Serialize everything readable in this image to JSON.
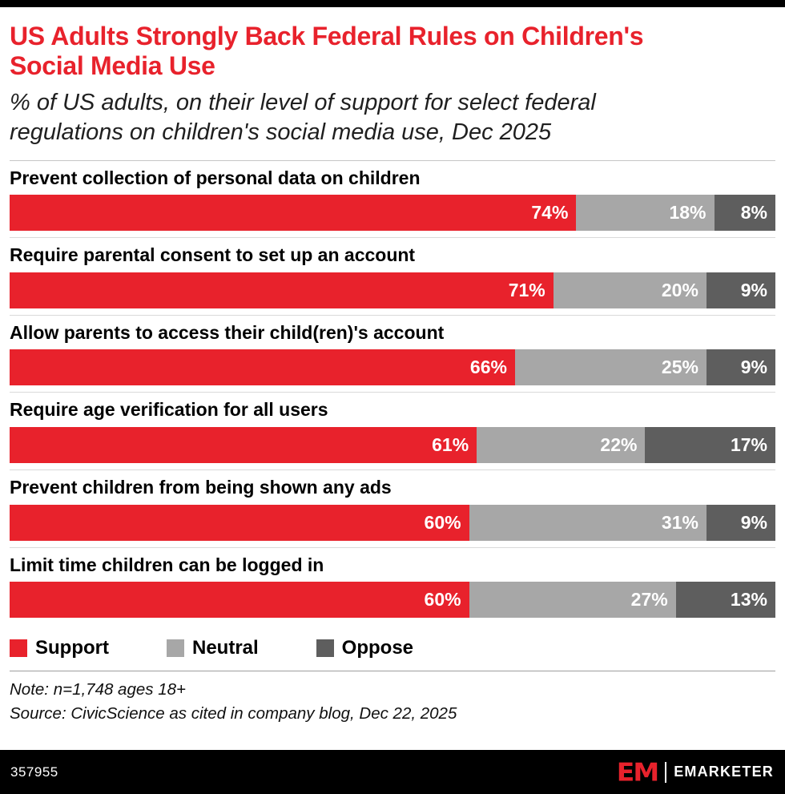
{
  "header": {
    "title": "US Adults Strongly Back Federal Rules on Children's Social Media Use",
    "subtitle": "% of US adults, on their level of support for select federal regulations on children's social media use, Dec 2025"
  },
  "chart_data": {
    "type": "bar",
    "orientation": "horizontal",
    "stacked": true,
    "value_suffix": "%",
    "xlim": [
      0,
      100
    ],
    "categories": [
      "Prevent collection of personal data on children",
      "Require parental consent to set up an account",
      "Allow parents to access their child(ren)'s account",
      "Require age verification for all users",
      "Prevent children from being shown any ads",
      "Limit time children can be logged in"
    ],
    "series": [
      {
        "name": "Support",
        "color": "#E8222C",
        "values": [
          74,
          71,
          66,
          61,
          60,
          60
        ]
      },
      {
        "name": "Neutral",
        "color": "#A7A7A7",
        "values": [
          18,
          20,
          25,
          22,
          31,
          27
        ]
      },
      {
        "name": "Oppose",
        "color": "#5E5E5E",
        "values": [
          8,
          9,
          9,
          17,
          9,
          13
        ]
      }
    ]
  },
  "legend": [
    {
      "label": "Support",
      "color": "#E8222C"
    },
    {
      "label": "Neutral",
      "color": "#A7A7A7"
    },
    {
      "label": "Oppose",
      "color": "#5E5E5E"
    }
  ],
  "notes": {
    "note": "Note: n=1,748 ages 18+",
    "source": "Source: CivicScience as cited in company blog, Dec 22, 2025"
  },
  "footer": {
    "chart_id": "357955",
    "logo_text": "EM",
    "brand": "EMARKETER"
  }
}
